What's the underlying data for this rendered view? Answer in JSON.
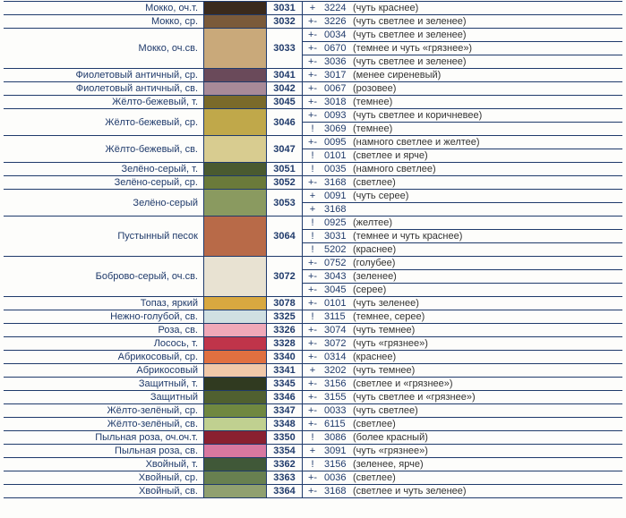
{
  "rows": [
    {
      "name": "Мокко, оч.т.",
      "swatch": "#3a2a1c",
      "code": "3031",
      "notes": [
        {
          "sym": "+",
          "code": "3224",
          "text": "(чуть краснее)"
        }
      ]
    },
    {
      "name": "Мокко, ср.",
      "swatch": "#7a5a3a",
      "code": "3032",
      "notes": [
        {
          "sym": "+-",
          "code": "3226",
          "text": "(чуть светлее и зеленее)"
        }
      ]
    },
    {
      "name": "Мокко, оч.св.",
      "swatch": "#c9a97a",
      "code": "3033",
      "notes": [
        {
          "sym": "+-",
          "code": "0034",
          "text": "(чуть светлее и зеленее)"
        },
        {
          "sym": "+-",
          "code": "0670",
          "text": "(темнее и чуть «грязнее»)"
        },
        {
          "sym": "+-",
          "code": "3036",
          "text": "(чуть светлее и зеленее)"
        }
      ]
    },
    {
      "name": "Фиолетовый античный, ср.",
      "swatch": "#6a4a5a",
      "code": "3041",
      "notes": [
        {
          "sym": "+-",
          "code": "3017",
          "text": "(менее сиреневый)"
        }
      ]
    },
    {
      "name": "Фиолетовый античный, св.",
      "swatch": "#a88a98",
      "code": "3042",
      "notes": [
        {
          "sym": "+-",
          "code": "0067",
          "text": "(розовее)"
        }
      ]
    },
    {
      "name": "Жёлто-бежевый, т.",
      "swatch": "#7a6a2a",
      "code": "3045",
      "notes": [
        {
          "sym": "+-",
          "code": "3018",
          "text": "(темнее)"
        }
      ]
    },
    {
      "name": "Жёлто-бежевый, ср.",
      "swatch": "#c0a84a",
      "code": "3046",
      "notes": [
        {
          "sym": "+-",
          "code": "0093",
          "text": "(чуть светлее и коричневее)"
        },
        {
          "sym": "!",
          "code": "3069",
          "text": "(темнее)"
        }
      ]
    },
    {
      "name": "Жёлто-бежевый, св.",
      "swatch": "#d8cc90",
      "code": "3047",
      "notes": [
        {
          "sym": "+-",
          "code": "0095",
          "text": "(намного светлее и желтее)"
        },
        {
          "sym": "!",
          "code": "0101",
          "text": "(светлее и ярче)"
        }
      ]
    },
    {
      "name": "Зелёно-серый, т.",
      "swatch": "#4a5a30",
      "code": "3051",
      "notes": [
        {
          "sym": "!",
          "code": "0035",
          "text": "(намного светлее)"
        }
      ]
    },
    {
      "name": "Зелёно-серый, ср.",
      "swatch": "#6a7a3a",
      "code": "3052",
      "notes": [
        {
          "sym": "+-",
          "code": "3168",
          "text": "(светлее)"
        }
      ]
    },
    {
      "name": "Зелёно-серый",
      "swatch": "#8a9a60",
      "code": "3053",
      "notes": [
        {
          "sym": "+",
          "code": "0091",
          "text": "(чуть серее)"
        },
        {
          "sym": "+",
          "code": "3168",
          "text": ""
        }
      ]
    },
    {
      "name": "Пустынный песок",
      "swatch": "#b86a48",
      "code": "3064",
      "notes": [
        {
          "sym": "!",
          "code": "0925",
          "text": "(желтее)"
        },
        {
          "sym": "!",
          "code": "3031",
          "text": "(темнее и чуть краснее)"
        },
        {
          "sym": "!",
          "code": "5202",
          "text": "(краснее)"
        }
      ]
    },
    {
      "name": "Боброво-серый, оч.св.",
      "swatch": "#e8e2d2",
      "code": "3072",
      "notes": [
        {
          "sym": "+-",
          "code": "0752",
          "text": "(голубее)"
        },
        {
          "sym": "+-",
          "code": "3043",
          "text": "(зеленее)"
        },
        {
          "sym": "+-",
          "code": "3045",
          "text": "(серее)"
        }
      ]
    },
    {
      "name": "Топаз, яркий",
      "swatch": "#d8a840",
      "code": "3078",
      "notes": [
        {
          "sym": "+-",
          "code": "0101",
          "text": "(чуть зеленее)"
        }
      ]
    },
    {
      "name": "Нежно-голубой, св.",
      "swatch": "#d0e0e2",
      "code": "3325",
      "notes": [
        {
          "sym": "!",
          "code": "3115",
          "text": "(темнее, серее)"
        }
      ]
    },
    {
      "name": "Роза, св.",
      "swatch": "#f0a8b8",
      "code": "3326",
      "notes": [
        {
          "sym": "+-",
          "code": "3074",
          "text": "(чуть темнее)"
        }
      ]
    },
    {
      "name": "Лосось, т.",
      "swatch": "#c0344a",
      "code": "3328",
      "notes": [
        {
          "sym": "+-",
          "code": "3072",
          "text": "(чуть «грязнее»)"
        }
      ]
    },
    {
      "name": "Абрикосовый, ср.",
      "swatch": "#e07040",
      "code": "3340",
      "notes": [
        {
          "sym": "+-",
          "code": "0314",
          "text": "(краснее)"
        }
      ]
    },
    {
      "name": "Абрикосовый",
      "swatch": "#f0c8a8",
      "code": "3341",
      "notes": [
        {
          "sym": "+",
          "code": "3202",
          "text": "(чуть темнее)"
        }
      ]
    },
    {
      "name": "Защитный, т.",
      "swatch": "#303a20",
      "code": "3345",
      "notes": [
        {
          "sym": "+-",
          "code": "3156",
          "text": "(светлее и «грязнее»)"
        }
      ]
    },
    {
      "name": "Защитный",
      "swatch": "#506030",
      "code": "3346",
      "notes": [
        {
          "sym": "+-",
          "code": "3155",
          "text": "(чуть светлее и «грязнее»)"
        }
      ]
    },
    {
      "name": "Жёлто-зелёный, ср.",
      "swatch": "#708840",
      "code": "3347",
      "notes": [
        {
          "sym": "+-",
          "code": "0033",
          "text": "(чуть светлее)"
        }
      ]
    },
    {
      "name": "Жёлто-зелёный, св.",
      "swatch": "#c0d090",
      "code": "3348",
      "notes": [
        {
          "sym": "+-",
          "code": "6115",
          "text": "(светлее)"
        }
      ]
    },
    {
      "name": "Пыльная роза, оч.оч.т.",
      "swatch": "#8a2030",
      "code": "3350",
      "notes": [
        {
          "sym": "!",
          "code": "3086",
          "text": "(более красный)"
        }
      ]
    },
    {
      "name": "Пыльная роза, св.",
      "swatch": "#d878a0",
      "code": "3354",
      "notes": [
        {
          "sym": "+",
          "code": "3091",
          "text": "(чуть «грязнее»)"
        }
      ]
    },
    {
      "name": "Хвойный, т.",
      "swatch": "#405838",
      "code": "3362",
      "notes": [
        {
          "sym": "!",
          "code": "3156",
          "text": "(зеленее, ярче)"
        }
      ]
    },
    {
      "name": "Хвойный, ср.",
      "swatch": "#688050",
      "code": "3363",
      "notes": [
        {
          "sym": "+-",
          "code": "0036",
          "text": "(светлее)"
        }
      ]
    },
    {
      "name": "Хвойный, св.",
      "swatch": "#90a070",
      "code": "3364",
      "notes": [
        {
          "sym": "+-",
          "code": "3168",
          "text": "(светлее и чуть зеленее)"
        }
      ]
    }
  ]
}
